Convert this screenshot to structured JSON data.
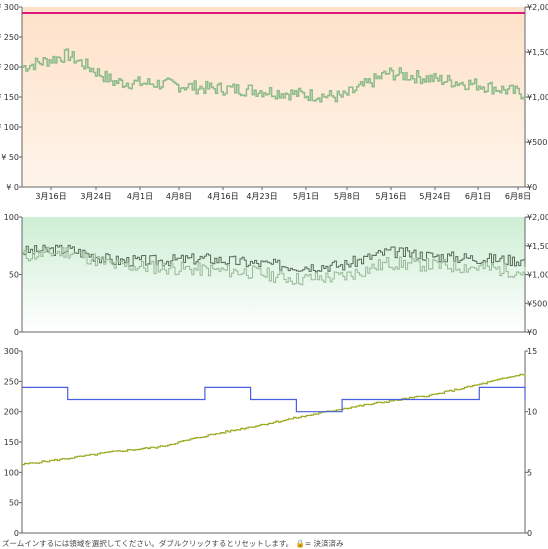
{
  "price_chart": {
    "left_ticks": [
      "¥ 0",
      "¥ 50",
      "¥ 100",
      "¥ 150",
      "¥ 200",
      "¥ 250",
      "¥ 300"
    ],
    "right_ticks": [
      "¥0",
      "¥500",
      "¥1,000",
      "¥1,500",
      "¥2,000"
    ],
    "x_ticks": [
      "3月16日",
      "3月24日",
      "4月1日",
      "4月8日",
      "4月16日",
      "4月23日",
      "5月1日",
      "5月8日",
      "5月16日",
      "5月24日",
      "6月1日",
      "6月8日"
    ],
    "colors": {
      "price_line": "#8dbb8a",
      "top_line": "#e0167f",
      "fill_top": "#fde1c8",
      "fill_bottom": "#fff4ea"
    }
  },
  "mid_chart": {
    "left_ticks": [
      "0",
      "50",
      "100"
    ],
    "right_ticks": [
      "¥0",
      "¥500",
      "¥1,000",
      "¥1,500",
      "¥2,000"
    ],
    "colors": {
      "line_dark": "#556b55",
      "line_light": "#97b997",
      "fill_top": "#d8f1dd"
    }
  },
  "bottom_chart": {
    "left_ticks": [
      "0",
      "50",
      "100",
      "150",
      "200",
      "250",
      "300"
    ],
    "right_ticks": [
      "0",
      "5",
      "10",
      "15"
    ],
    "colors": {
      "rank_line": "#9aa81e",
      "blue_line": "#4a5fe0"
    }
  },
  "hint": {
    "text": "ズームインするには領域を選択してください。ダブルクリックするとリセットします。",
    "lock_icon": "lock-icon",
    "legend": "= 決済済み"
  },
  "chart_data": [
    {
      "type": "line",
      "ylim_left": [
        0,
        300
      ],
      "ylim_right": [
        0,
        2000
      ],
      "x": [
        "3月16日",
        "3月24日",
        "4月1日",
        "4月8日",
        "4月16日",
        "4月23日",
        "5月1日",
        "5月8日",
        "5月16日",
        "5月24日",
        "6月1日",
        "6月8日"
      ],
      "series": [
        {
          "values": [
            200,
            220,
            175,
            172,
            165,
            162,
            155,
            150,
            190,
            180,
            170,
            155
          ]
        },
        {
          "values": [
            290,
            290,
            290,
            290,
            290,
            290,
            290,
            290,
            290,
            290,
            290,
            290
          ]
        }
      ]
    },
    {
      "type": "line",
      "ylim_left": [
        0,
        100
      ],
      "ylim_right": [
        0,
        2000
      ],
      "x": [
        "3月16日",
        "3月24日",
        "4月1日",
        "4月8日",
        "4月16日",
        "4月23日",
        "5月1日",
        "5月8日",
        "5月16日",
        "5月24日",
        "6月1日",
        "6月8日"
      ],
      "series": [
        {
          "values": [
            70,
            72,
            62,
            62,
            64,
            60,
            57,
            58,
            70,
            66,
            64,
            62
          ]
        },
        {
          "values": [
            66,
            70,
            58,
            56,
            54,
            52,
            46,
            48,
            60,
            58,
            56,
            52
          ]
        }
      ]
    },
    {
      "type": "line",
      "ylim_left": [
        0,
        300
      ],
      "ylim_right": [
        0,
        15
      ],
      "x": [
        "3月16日",
        "3月24日",
        "4月1日",
        "4月8日",
        "4月16日",
        "4月23日",
        "5月1日",
        "5月8日",
        "5月16日",
        "5月24日",
        "6月1日",
        "6月8日"
      ],
      "series": [
        {
          "values": [
            113,
            123,
            134,
            142,
            160,
            175,
            190,
            205,
            217,
            228,
            245,
            263
          ]
        },
        {
          "values": [
            12,
            11,
            11,
            11,
            12,
            11,
            10,
            11,
            11,
            11,
            12,
            11
          ]
        }
      ]
    }
  ]
}
